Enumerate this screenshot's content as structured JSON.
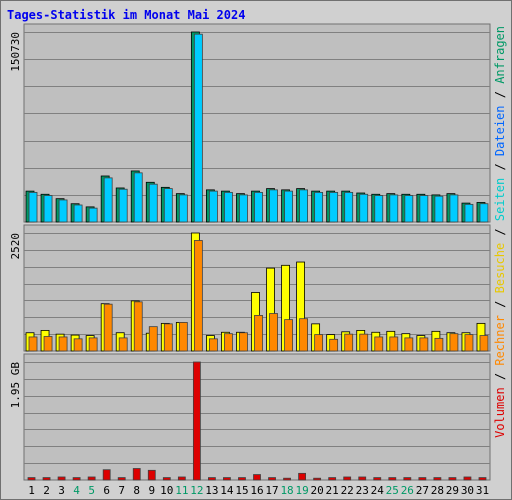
{
  "chart_data": {
    "type": "bar",
    "title": "Tages-Statistik im Monat Mai 2024",
    "categories": [
      "1",
      "2",
      "3",
      "4",
      "5",
      "6",
      "7",
      "8",
      "9",
      "10",
      "11",
      "12",
      "13",
      "14",
      "15",
      "16",
      "17",
      "18",
      "19",
      "20",
      "21",
      "22",
      "23",
      "24",
      "25",
      "26",
      "27",
      "28",
      "29",
      "30",
      "31"
    ],
    "weekend_days": [
      "4",
      "5",
      "11",
      "12",
      "18",
      "19",
      "25",
      "26"
    ],
    "panels": [
      {
        "ymax_label": "150730",
        "ylim": [
          0,
          150730
        ],
        "series": [
          {
            "name": "Anfragen",
            "color": "#009966",
            "values": [
              24500,
              22000,
              18500,
              14500,
              12000,
              36500,
              27000,
              40500,
              31500,
              27500,
              22500,
              150730,
              25500,
              24500,
              22500,
              24500,
              26500,
              25500,
              26500,
              24500,
              24500,
              24500,
              23000,
              22000,
              22500,
              22000,
              22000,
              21500,
              22500,
              15000,
              15500
            ]
          },
          {
            "name": "Dateien",
            "color": "#00ccff",
            "values": [
              23500,
              21000,
              17500,
              13500,
              11000,
              35000,
              26000,
              39000,
              30000,
              26500,
              21500,
              149000,
              24500,
              23500,
              21500,
              23500,
              25500,
              24500,
              25500,
              23500,
              23500,
              23500,
              22000,
              21000,
              21500,
              21000,
              21000,
              20500,
              21500,
              14000,
              14500
            ]
          }
        ]
      },
      {
        "ymax_label": "2520",
        "ylim": [
          0,
          2520
        ],
        "series": [
          {
            "name": "Seiten",
            "color": "#00cccc",
            "values": []
          },
          {
            "name": "Besuche",
            "color": "#ffff00",
            "values": [
              390,
              440,
              360,
              340,
              330,
              1010,
              390,
              1070,
              380,
              590,
              610,
              2520,
              330,
              400,
              400,
              1250,
              1770,
              1830,
              1900,
              580,
              350,
              410,
              440,
              400,
              420,
              370,
              330,
              420,
              390,
              390,
              590
            ]
          },
          {
            "name": "Rechner",
            "color": "#ff8800",
            "values": [
              300,
              310,
              300,
              260,
              280,
              1000,
              280,
              1050,
              520,
              580,
              610,
              2360,
              260,
              370,
              390,
              760,
              800,
              670,
              690,
              350,
              250,
              360,
              360,
              300,
              300,
              280,
              280,
              270,
              370,
              350,
              330
            ]
          }
        ]
      },
      {
        "ymax_label": "1.95 GB",
        "ylim": [
          0,
          1.95
        ],
        "unit": "GB",
        "series": [
          {
            "name": "Volumen",
            "color": "#dd0000",
            "values": [
              0.04,
              0.04,
              0.05,
              0.04,
              0.05,
              0.17,
              0.04,
              0.19,
              0.16,
              0.04,
              0.05,
              1.95,
              0.04,
              0.04,
              0.04,
              0.09,
              0.04,
              0.03,
              0.11,
              0.03,
              0.04,
              0.05,
              0.05,
              0.04,
              0.04,
              0.04,
              0.04,
              0.04,
              0.04,
              0.05,
              0.04
            ]
          }
        ]
      }
    ],
    "legend_placement": "right",
    "legend": [
      {
        "text": "Volumen",
        "color": "#dd0000"
      },
      {
        "text": " / ",
        "color": "#000000"
      },
      {
        "text": "Rechner",
        "color": "#ff8800"
      },
      {
        "text": " / ",
        "color": "#000000"
      },
      {
        "text": "Besuche",
        "color": "#e8c800"
      },
      {
        "text": " / ",
        "color": "#000000"
      },
      {
        "text": "Seiten",
        "color": "#00cccc"
      },
      {
        "text": " / ",
        "color": "#000000"
      },
      {
        "text": "Dateien",
        "color": "#0066ff"
      },
      {
        "text": " / ",
        "color": "#000000"
      },
      {
        "text": "Anfragen",
        "color": "#009966"
      }
    ],
    "colors": {
      "plot_background": "#bfbfbf",
      "frame_background": "#d0d0d0",
      "gridline": "#808080",
      "weekday_tick": "#000000",
      "weekend_tick": "#009966",
      "title": "#0000ee"
    }
  }
}
